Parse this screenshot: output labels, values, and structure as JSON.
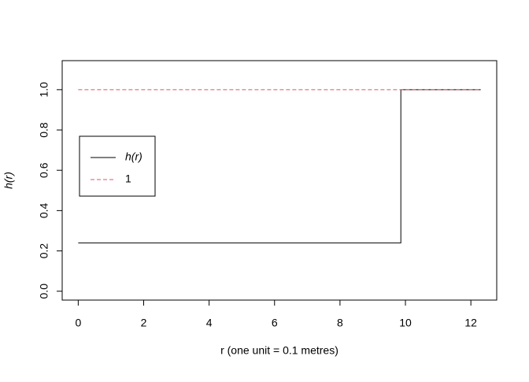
{
  "chart_data": {
    "type": "line",
    "xlabel": "r  (one unit = 0.1 metres)",
    "ylabel": "h(r)",
    "series": [
      {
        "name": "h(r)",
        "color": "#000000",
        "dash": false,
        "x": [
          0,
          9.86,
          9.86,
          12.3
        ],
        "values": [
          0.24,
          0.24,
          1,
          1
        ]
      },
      {
        "name": "1",
        "color": "#df536b",
        "dash": true,
        "x": [
          0,
          12.3
        ],
        "values": [
          1,
          1
        ]
      }
    ],
    "xlim": [
      -0.49,
      12.79
    ],
    "ylim": [
      -0.044,
      1.144
    ],
    "xticks": [
      0,
      2,
      4,
      6,
      8,
      10,
      12
    ],
    "yticks": [
      {
        "value": 0,
        "label": "0.0"
      },
      {
        "value": 0.2,
        "label": "0.2"
      },
      {
        "value": 0.4,
        "label": "0.4"
      },
      {
        "value": 0.6,
        "label": "0.6"
      },
      {
        "value": 0.8,
        "label": "0.8"
      },
      {
        "value": 1,
        "label": "1.0"
      }
    ],
    "legend": "left"
  }
}
